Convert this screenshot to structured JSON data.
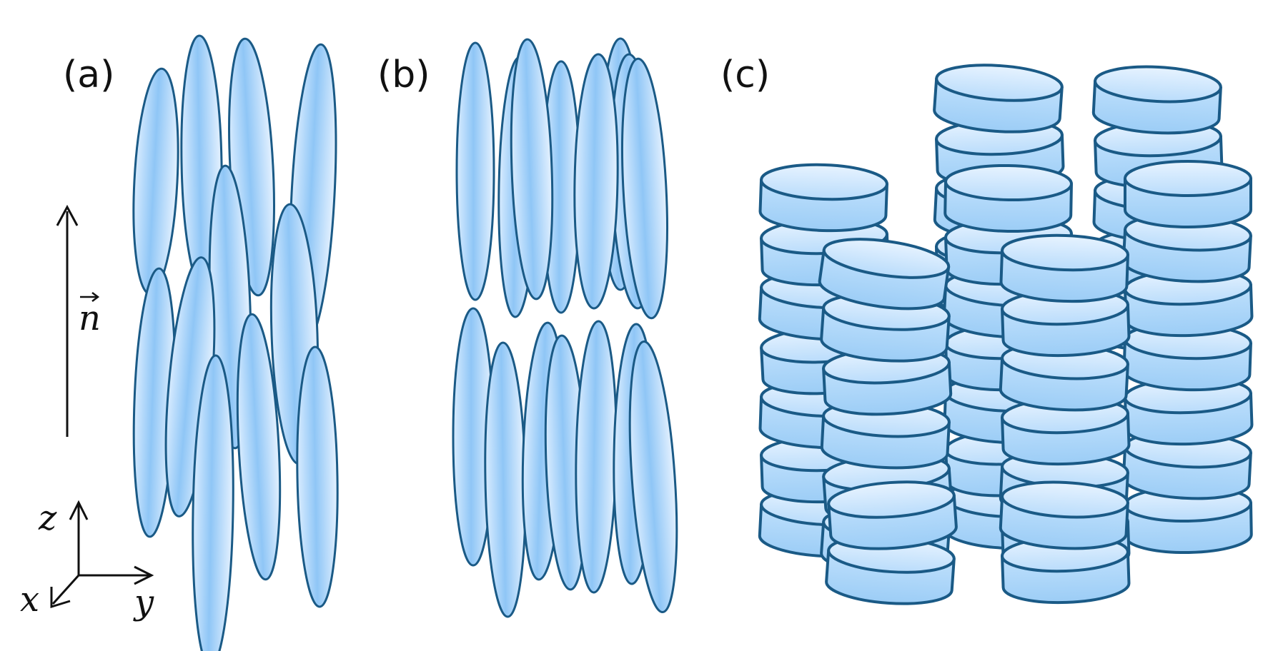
{
  "panels": {
    "a": {
      "label": "(a)"
    },
    "b": {
      "label": "(b)"
    },
    "c": {
      "label": "(c)"
    }
  },
  "director": {
    "label": "n"
  },
  "axes": {
    "z": "z",
    "x": "x",
    "y": "y"
  },
  "colors": {
    "outline": "#1a5a86",
    "fill_light": "#eaf4ff",
    "fill_mid": "#a9d2f6",
    "fill_dark": "#7fbaf0"
  }
}
